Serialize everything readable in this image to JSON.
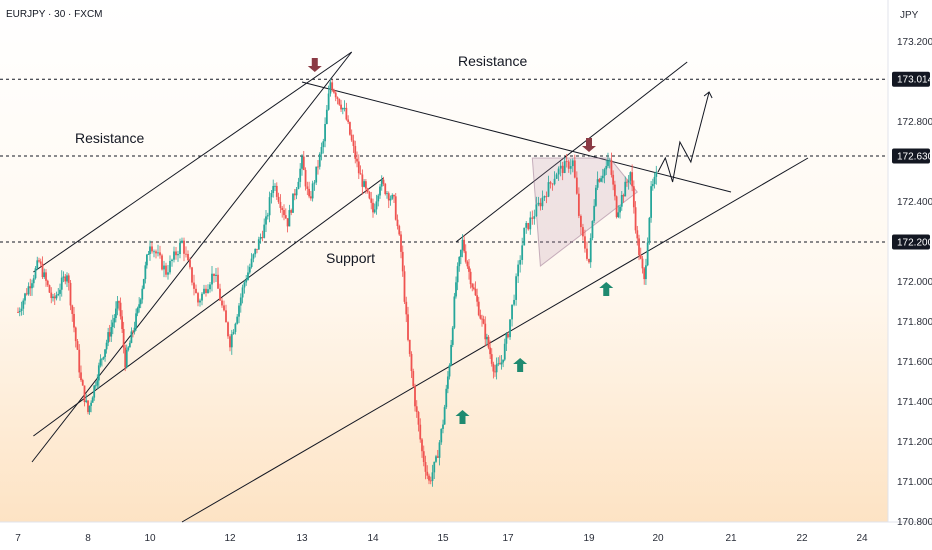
{
  "chart_data": {
    "type": "candlestick",
    "symbol_label": "EURJPY · 30 · FXCM",
    "currency": "JPY",
    "y_axis": {
      "ylim": [
        170.8,
        173.35
      ],
      "ticks": [
        "173.200",
        "172.800",
        "172.400",
        "172.000",
        "171.800",
        "171.600",
        "171.400",
        "171.200",
        "171.000",
        "170.800"
      ]
    },
    "y_ticks_values": [
      173.2,
      172.8,
      172.4,
      172.0,
      171.8,
      171.6,
      171.4,
      171.2,
      171.0,
      170.8
    ],
    "x_axis": {
      "ticks": [
        "7",
        "8",
        "10",
        "12",
        "13",
        "14",
        "15",
        "17",
        "19",
        "20",
        "21",
        "22",
        "24"
      ],
      "tick_index": [
        0,
        1,
        2,
        3,
        4,
        5,
        6,
        7,
        8,
        9,
        10,
        11,
        12
      ]
    },
    "horizontal_levels": [
      {
        "value": 173.014,
        "label": "173.014"
      },
      {
        "value": 172.63,
        "label": "172.630"
      },
      {
        "value": 172.2,
        "label": "172.200"
      }
    ],
    "annotations": [
      {
        "text": "Resistance",
        "kind": "resistance-upper"
      },
      {
        "text": "Resistance",
        "kind": "resistance-left"
      },
      {
        "text": "Support",
        "kind": "support"
      }
    ],
    "colors": {
      "up": "#26a69a",
      "down": "#ef5350",
      "down_arrow": "#8b3a44",
      "up_arrow": "#1f8a70",
      "line": "#131722",
      "label_bg": "#131722",
      "label_text": "#ffffff"
    },
    "grid": false,
    "background": "gradient white to pale orange",
    "price_path": [
      [
        0,
        171.85
      ],
      [
        0.3,
        172.1
      ],
      [
        0.5,
        171.9
      ],
      [
        0.7,
        172.05
      ],
      [
        0.9,
        171.5
      ],
      [
        1.0,
        171.35
      ],
      [
        1.2,
        171.6
      ],
      [
        1.5,
        171.9
      ],
      [
        1.6,
        171.6
      ],
      [
        1.8,
        171.85
      ],
      [
        2.0,
        172.2
      ],
      [
        2.2,
        172.05
      ],
      [
        2.4,
        172.2
      ],
      [
        2.6,
        171.9
      ],
      [
        2.8,
        172.05
      ],
      [
        3.0,
        171.7
      ],
      [
        3.2,
        172.0
      ],
      [
        3.5,
        172.3
      ],
      [
        3.6,
        172.5
      ],
      [
        3.8,
        172.3
      ],
      [
        4.0,
        172.6
      ],
      [
        4.1,
        172.4
      ],
      [
        4.3,
        172.7
      ],
      [
        4.4,
        173.0
      ],
      [
        4.6,
        172.85
      ],
      [
        4.8,
        172.55
      ],
      [
        5.0,
        172.35
      ],
      [
        5.1,
        172.5
      ],
      [
        5.3,
        172.4
      ],
      [
        5.4,
        172.15
      ],
      [
        5.5,
        171.7
      ],
      [
        5.6,
        171.4
      ],
      [
        5.7,
        171.15
      ],
      [
        5.8,
        171.0
      ],
      [
        5.9,
        171.1
      ],
      [
        6.0,
        171.3
      ],
      [
        6.1,
        171.6
      ],
      [
        6.2,
        172.0
      ],
      [
        6.3,
        172.2
      ],
      [
        6.4,
        172.05
      ],
      [
        6.6,
        171.8
      ],
      [
        6.8,
        171.55
      ],
      [
        6.9,
        171.6
      ],
      [
        7.0,
        171.75
      ],
      [
        7.1,
        172.0
      ],
      [
        7.2,
        172.25
      ],
      [
        7.4,
        172.4
      ],
      [
        7.6,
        172.55
      ],
      [
        7.8,
        172.6
      ],
      [
        7.9,
        172.25
      ],
      [
        8.0,
        172.1
      ],
      [
        8.1,
        172.5
      ],
      [
        8.3,
        172.6
      ],
      [
        8.4,
        172.35
      ],
      [
        8.6,
        172.55
      ],
      [
        8.7,
        172.2
      ],
      [
        8.8,
        172.0
      ],
      [
        8.9,
        172.45
      ],
      [
        9.0,
        172.55
      ]
    ],
    "projection_path": [
      [
        9.0,
        172.55
      ],
      [
        9.1,
        172.62
      ],
      [
        9.2,
        172.5
      ],
      [
        9.3,
        172.7
      ],
      [
        9.45,
        172.6
      ],
      [
        9.7,
        172.95
      ]
    ]
  }
}
